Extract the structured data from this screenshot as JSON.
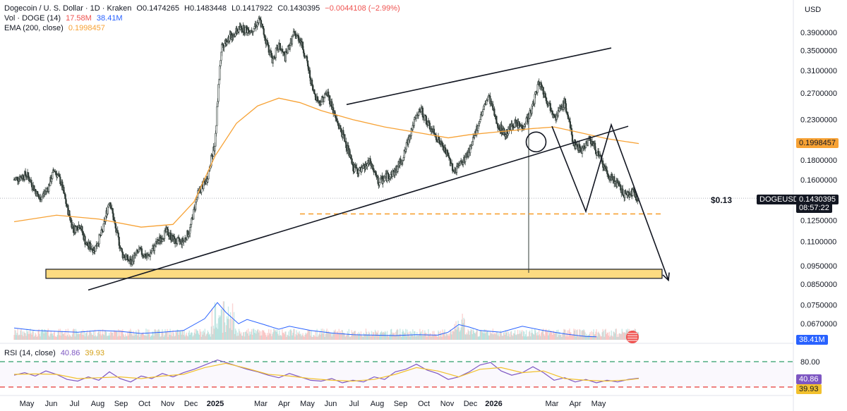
{
  "legend": {
    "title": "Dogecoin / U. S. Dollar · 1D · Kraken",
    "open": "O0.1474265",
    "high": "H0.1483448",
    "low": "L0.1417922",
    "close": "C0.1430395",
    "change": "−0.0044108 (−2.99%)",
    "vol_label": "Vol · DOGE (14)",
    "vol_value1": "17.58M",
    "vol_value2": "38.41M",
    "ema_label": "EMA (200, close)",
    "ema_value": "0.1998457",
    "rsi_label": "RSI (14, close)",
    "rsi_value1": "40.86",
    "rsi_value2": "39.93"
  },
  "currency": "USD",
  "annotations": {
    "price_note": "$0.13"
  },
  "tags": {
    "ema": "0.1998457",
    "symbol": "DOGEUSD",
    "last_price": "0.1430395",
    "countdown": "08:57:22",
    "volume": "38.41M",
    "rsi1": "40.86",
    "rsi2": "39.93"
  },
  "colors": {
    "up": "#26a69a",
    "down": "#ef5350",
    "candle": "#2f3b36",
    "ema": "#f7a235",
    "volume_ma": "#2962ff",
    "rsi": "#7e57c2",
    "rsi_ma": "#f2c12e",
    "support_zone": "#fbd56b"
  },
  "chart_data": {
    "type": "line",
    "price_axis_ticks": [
      "0.3900000",
      "0.3500000",
      "0.3100000",
      "0.2700000",
      "0.2300000",
      "0.1800000",
      "0.1600000",
      "0.1250000",
      "0.1100000",
      "0.0950000",
      "0.0850000",
      "0.0750000",
      "0.0670000"
    ],
    "price_scale": "log",
    "time_axis": [
      "May",
      "Jun",
      "Jul",
      "Aug",
      "Sep",
      "Oct",
      "Nov",
      "Dec",
      "2025",
      "Mar",
      "Apr",
      "May",
      "Jun",
      "Jul",
      "Aug",
      "Sep",
      "Oct",
      "Nov",
      "Dec",
      "2026",
      "Mar",
      "Apr",
      "May"
    ],
    "price_path": [
      {
        "t": 0,
        "p": 0.16
      },
      {
        "t": 0.6,
        "p": 0.165
      },
      {
        "t": 1.2,
        "p": 0.142
      },
      {
        "t": 1.6,
        "p": 0.152
      },
      {
        "t": 1.9,
        "p": 0.17
      },
      {
        "t": 2.2,
        "p": 0.158
      },
      {
        "t": 2.5,
        "p": 0.135
      },
      {
        "t": 2.8,
        "p": 0.118
      },
      {
        "t": 3.1,
        "p": 0.122
      },
      {
        "t": 3.4,
        "p": 0.108
      },
      {
        "t": 3.8,
        "p": 0.105
      },
      {
        "t": 4.2,
        "p": 0.118
      },
      {
        "t": 4.5,
        "p": 0.142
      },
      {
        "t": 4.8,
        "p": 0.118
      },
      {
        "t": 5.1,
        "p": 0.102
      },
      {
        "t": 5.5,
        "p": 0.097
      },
      {
        "t": 5.9,
        "p": 0.104
      },
      {
        "t": 6.3,
        "p": 0.1
      },
      {
        "t": 6.8,
        "p": 0.11
      },
      {
        "t": 7.2,
        "p": 0.117
      },
      {
        "t": 7.6,
        "p": 0.11
      },
      {
        "t": 8.0,
        "p": 0.11
      },
      {
        "t": 8.3,
        "p": 0.118
      },
      {
        "t": 8.7,
        "p": 0.148
      },
      {
        "t": 9.1,
        "p": 0.16
      },
      {
        "t": 9.5,
        "p": 0.2
      },
      {
        "t": 9.8,
        "p": 0.36
      },
      {
        "t": 10.2,
        "p": 0.38
      },
      {
        "t": 10.7,
        "p": 0.4
      },
      {
        "t": 11.2,
        "p": 0.395
      },
      {
        "t": 11.6,
        "p": 0.42
      },
      {
        "t": 11.9,
        "p": 0.37
      },
      {
        "t": 12.2,
        "p": 0.33
      },
      {
        "t": 12.5,
        "p": 0.36
      },
      {
        "t": 12.8,
        "p": 0.335
      },
      {
        "t": 13.2,
        "p": 0.385
      },
      {
        "t": 13.5,
        "p": 0.375
      },
      {
        "t": 13.8,
        "p": 0.33
      },
      {
        "t": 14.1,
        "p": 0.275
      },
      {
        "t": 14.4,
        "p": 0.255
      },
      {
        "t": 14.8,
        "p": 0.27
      },
      {
        "t": 15.2,
        "p": 0.23
      },
      {
        "t": 15.6,
        "p": 0.205
      },
      {
        "t": 16.0,
        "p": 0.172
      },
      {
        "t": 16.4,
        "p": 0.168
      },
      {
        "t": 16.8,
        "p": 0.178
      },
      {
        "t": 17.2,
        "p": 0.157
      },
      {
        "t": 17.6,
        "p": 0.163
      },
      {
        "t": 18.0,
        "p": 0.168
      },
      {
        "t": 18.4,
        "p": 0.185
      },
      {
        "t": 18.8,
        "p": 0.22
      },
      {
        "t": 19.2,
        "p": 0.245
      },
      {
        "t": 19.6,
        "p": 0.22
      },
      {
        "t": 20.0,
        "p": 0.205
      },
      {
        "t": 20.4,
        "p": 0.188
      },
      {
        "t": 20.8,
        "p": 0.168
      },
      {
        "t": 21.2,
        "p": 0.178
      },
      {
        "t": 21.6,
        "p": 0.195
      },
      {
        "t": 22.0,
        "p": 0.232
      },
      {
        "t": 22.4,
        "p": 0.265
      },
      {
        "t": 22.8,
        "p": 0.225
      },
      {
        "t": 23.2,
        "p": 0.21
      },
      {
        "t": 23.6,
        "p": 0.225
      },
      {
        "t": 24.0,
        "p": 0.22
      },
      {
        "t": 24.4,
        "p": 0.24
      },
      {
        "t": 24.8,
        "p": 0.29
      },
      {
        "t": 25.2,
        "p": 0.255
      },
      {
        "t": 25.6,
        "p": 0.235
      },
      {
        "t": 26.0,
        "p": 0.255
      },
      {
        "t": 26.4,
        "p": 0.2
      },
      {
        "t": 26.8,
        "p": 0.192
      },
      {
        "t": 27.2,
        "p": 0.205
      },
      {
        "t": 27.6,
        "p": 0.185
      },
      {
        "t": 28.0,
        "p": 0.165
      },
      {
        "t": 28.4,
        "p": 0.158
      },
      {
        "t": 28.8,
        "p": 0.146
      },
      {
        "t": 29.2,
        "p": 0.148
      },
      {
        "t": 29.5,
        "p": 0.143
      }
    ],
    "price_x_range": [
      0,
      36
    ],
    "time_label_t": [
      0.6,
      1.75,
      2.85,
      3.95,
      5.05,
      6.15,
      7.25,
      8.35,
      9.5,
      11.65,
      12.75,
      13.85,
      14.95,
      16.05,
      17.15,
      18.25,
      19.35,
      20.45,
      21.55,
      22.65,
      25.4,
      26.5,
      27.6
    ],
    "ema_path": [
      {
        "t": 0,
        "p": 0.124
      },
      {
        "t": 2.0,
        "p": 0.129
      },
      {
        "t": 4.0,
        "p": 0.126
      },
      {
        "t": 6.0,
        "p": 0.12
      },
      {
        "t": 7.5,
        "p": 0.122
      },
      {
        "t": 8.5,
        "p": 0.14
      },
      {
        "t": 9.5,
        "p": 0.185
      },
      {
        "t": 10.5,
        "p": 0.225
      },
      {
        "t": 11.5,
        "p": 0.25
      },
      {
        "t": 12.5,
        "p": 0.262
      },
      {
        "t": 13.5,
        "p": 0.255
      },
      {
        "t": 14.5,
        "p": 0.243
      },
      {
        "t": 16.0,
        "p": 0.23
      },
      {
        "t": 17.5,
        "p": 0.22
      },
      {
        "t": 19.0,
        "p": 0.213
      },
      {
        "t": 20.5,
        "p": 0.206
      },
      {
        "t": 21.5,
        "p": 0.21
      },
      {
        "t": 23.0,
        "p": 0.214
      },
      {
        "t": 24.5,
        "p": 0.218
      },
      {
        "t": 25.5,
        "p": 0.22
      },
      {
        "t": 26.5,
        "p": 0.214
      },
      {
        "t": 28.0,
        "p": 0.205
      },
      {
        "t": 29.5,
        "p": 0.199
      }
    ],
    "support_zone": {
      "low": 0.088,
      "high": 0.093,
      "t_start": 1.5,
      "t_end": 30.6
    },
    "dashed_level": {
      "price": 0.13,
      "t_start": 13.5,
      "t_end": 30.6
    },
    "trendlines": [
      {
        "t1": 3.5,
        "p1": 0.082,
        "t2": 29.0,
        "p2": 0.221
      },
      {
        "t1": 15.7,
        "p1": 0.252,
        "t2": 28.2,
        "p2": 0.355
      }
    ],
    "projection": [
      {
        "t": 25.4,
        "p": 0.221
      },
      {
        "t": 27.0,
        "p": 0.132
      },
      {
        "t": 28.2,
        "p": 0.223
      },
      {
        "t": 30.9,
        "p": 0.087
      }
    ],
    "circle": {
      "t": 24.65,
      "p": 0.201
    },
    "volume_ma_path": [
      {
        "t": 0,
        "v": 0.28
      },
      {
        "t": 1,
        "v": 0.22
      },
      {
        "t": 2,
        "v": 0.2
      },
      {
        "t": 3,
        "v": 0.18
      },
      {
        "t": 4,
        "v": 0.22
      },
      {
        "t": 5,
        "v": 0.2
      },
      {
        "t": 6,
        "v": 0.15
      },
      {
        "t": 7,
        "v": 0.18
      },
      {
        "t": 8,
        "v": 0.22
      },
      {
        "t": 9,
        "v": 0.5
      },
      {
        "t": 9.6,
        "v": 0.88
      },
      {
        "t": 10,
        "v": 0.65
      },
      {
        "t": 10.6,
        "v": 0.38
      },
      {
        "t": 11,
        "v": 0.48
      },
      {
        "t": 11.8,
        "v": 0.36
      },
      {
        "t": 12.5,
        "v": 0.25
      },
      {
        "t": 13,
        "v": 0.32
      },
      {
        "t": 14,
        "v": 0.22
      },
      {
        "t": 15,
        "v": 0.16
      },
      {
        "t": 16,
        "v": 0.12
      },
      {
        "t": 17,
        "v": 0.11
      },
      {
        "t": 18,
        "v": 0.1
      },
      {
        "t": 19,
        "v": 0.12
      },
      {
        "t": 20,
        "v": 0.11
      },
      {
        "t": 20.5,
        "v": 0.18
      },
      {
        "t": 21,
        "v": 0.36
      },
      {
        "t": 21.5,
        "v": 0.3
      },
      {
        "t": 22,
        "v": 0.22
      },
      {
        "t": 23,
        "v": 0.18
      },
      {
        "t": 24,
        "v": 0.32
      },
      {
        "t": 25,
        "v": 0.22
      },
      {
        "t": 26,
        "v": 0.14
      },
      {
        "t": 27,
        "v": 0.08
      },
      {
        "t": 27.5,
        "v": 0.07
      }
    ],
    "rsi_levels": {
      "upper": 80,
      "lower": 20,
      "range": [
        10,
        90
      ]
    },
    "rsi_path": [
      {
        "t": 0,
        "r": 48
      },
      {
        "t": 0.5,
        "r": 54
      },
      {
        "t": 1,
        "r": 46
      },
      {
        "t": 1.5,
        "r": 58
      },
      {
        "t": 2,
        "r": 50
      },
      {
        "t": 2.5,
        "r": 38
      },
      {
        "t": 3,
        "r": 34
      },
      {
        "t": 3.5,
        "r": 44
      },
      {
        "t": 4,
        "r": 36
      },
      {
        "t": 4.5,
        "r": 56
      },
      {
        "t": 5,
        "r": 40
      },
      {
        "t": 5.5,
        "r": 32
      },
      {
        "t": 6,
        "r": 46
      },
      {
        "t": 6.5,
        "r": 40
      },
      {
        "t": 7,
        "r": 52
      },
      {
        "t": 7.5,
        "r": 44
      },
      {
        "t": 8,
        "r": 54
      },
      {
        "t": 8.5,
        "r": 62
      },
      {
        "t": 9,
        "r": 72
      },
      {
        "t": 9.6,
        "r": 84
      },
      {
        "t": 10,
        "r": 78
      },
      {
        "t": 10.5,
        "r": 70
      },
      {
        "t": 11,
        "r": 62
      },
      {
        "t": 11.5,
        "r": 56
      },
      {
        "t": 12,
        "r": 48
      },
      {
        "t": 12.5,
        "r": 42
      },
      {
        "t": 13,
        "r": 52
      },
      {
        "t": 13.5,
        "r": 44
      },
      {
        "t": 14,
        "r": 36
      },
      {
        "t": 14.5,
        "r": 34
      },
      {
        "t": 15,
        "r": 40
      },
      {
        "t": 15.5,
        "r": 30
      },
      {
        "t": 16,
        "r": 36
      },
      {
        "t": 16.5,
        "r": 32
      },
      {
        "t": 17,
        "r": 44
      },
      {
        "t": 17.5,
        "r": 38
      },
      {
        "t": 18,
        "r": 56
      },
      {
        "t": 18.5,
        "r": 62
      },
      {
        "t": 19,
        "r": 74
      },
      {
        "t": 19.5,
        "r": 60
      },
      {
        "t": 20,
        "r": 52
      },
      {
        "t": 20.5,
        "r": 38
      },
      {
        "t": 21,
        "r": 44
      },
      {
        "t": 21.5,
        "r": 56
      },
      {
        "t": 22,
        "r": 72
      },
      {
        "t": 22.5,
        "r": 78
      },
      {
        "t": 23,
        "r": 58
      },
      {
        "t": 23.5,
        "r": 48
      },
      {
        "t": 24,
        "r": 54
      },
      {
        "t": 24.5,
        "r": 68
      },
      {
        "t": 25,
        "r": 54
      },
      {
        "t": 25.5,
        "r": 36
      },
      {
        "t": 26,
        "r": 42
      },
      {
        "t": 26.5,
        "r": 32
      },
      {
        "t": 27,
        "r": 38
      },
      {
        "t": 27.5,
        "r": 30
      },
      {
        "t": 28,
        "r": 36
      },
      {
        "t": 28.5,
        "r": 32
      },
      {
        "t": 29,
        "r": 38
      },
      {
        "t": 29.5,
        "r": 40.86
      }
    ],
    "rsi_ma_path": [
      {
        "t": 0,
        "r": 50
      },
      {
        "t": 1,
        "r": 51
      },
      {
        "t": 2,
        "r": 50
      },
      {
        "t": 3,
        "r": 40
      },
      {
        "t": 4,
        "r": 42
      },
      {
        "t": 5,
        "r": 44
      },
      {
        "t": 6,
        "r": 40
      },
      {
        "t": 7,
        "r": 46
      },
      {
        "t": 8,
        "r": 50
      },
      {
        "t": 9,
        "r": 66
      },
      {
        "t": 10,
        "r": 76
      },
      {
        "t": 11,
        "r": 64
      },
      {
        "t": 12,
        "r": 50
      },
      {
        "t": 13,
        "r": 46
      },
      {
        "t": 14,
        "r": 40
      },
      {
        "t": 15,
        "r": 36
      },
      {
        "t": 16,
        "r": 34
      },
      {
        "t": 17,
        "r": 38
      },
      {
        "t": 18,
        "r": 50
      },
      {
        "t": 19,
        "r": 66
      },
      {
        "t": 20,
        "r": 58
      },
      {
        "t": 21,
        "r": 44
      },
      {
        "t": 22,
        "r": 62
      },
      {
        "t": 23,
        "r": 66
      },
      {
        "t": 24,
        "r": 54
      },
      {
        "t": 25,
        "r": 58
      },
      {
        "t": 26,
        "r": 40
      },
      {
        "t": 27,
        "r": 36
      },
      {
        "t": 28,
        "r": 34
      },
      {
        "t": 29,
        "r": 37
      },
      {
        "t": 29.5,
        "r": 39.93
      }
    ]
  }
}
